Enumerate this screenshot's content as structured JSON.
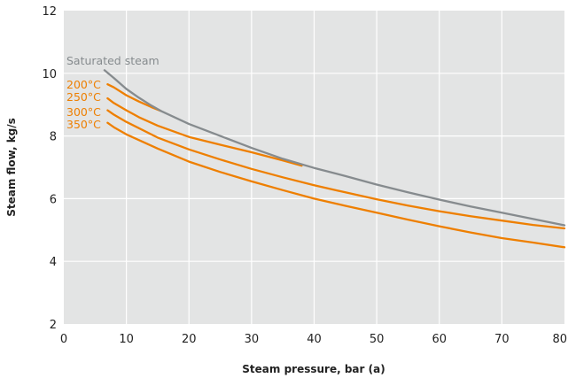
{
  "chart_data": {
    "type": "line",
    "title": "",
    "xlabel": "Steam pressure, bar (a)",
    "ylabel": "Steam flow, kg/s",
    "xlim": [
      0,
      80
    ],
    "ylim": [
      2,
      12
    ],
    "xticks": [
      "0",
      "10",
      "20",
      "30",
      "40",
      "50",
      "60",
      "70",
      "80"
    ],
    "yticks": [
      "2",
      "4",
      "6",
      "8",
      "10",
      "12"
    ],
    "grid": true,
    "background": "#e3e4e4",
    "series": [
      {
        "name": "Saturated steam",
        "color": "#868b8e",
        "points": [
          [
            6.5,
            10.1
          ],
          [
            8,
            9.85
          ],
          [
            10,
            9.5
          ],
          [
            12,
            9.22
          ],
          [
            14,
            8.97
          ],
          [
            15.5,
            8.8
          ],
          [
            20,
            8.38
          ],
          [
            25,
            8.0
          ],
          [
            30,
            7.62
          ],
          [
            35,
            7.27
          ],
          [
            40,
            6.98
          ],
          [
            45,
            6.72
          ],
          [
            50,
            6.45
          ],
          [
            55,
            6.2
          ],
          [
            60,
            5.97
          ],
          [
            65,
            5.75
          ],
          [
            70,
            5.55
          ],
          [
            75,
            5.35
          ],
          [
            80,
            5.15
          ]
        ]
      },
      {
        "name": "200°C",
        "color": "#ee7f00",
        "points": [
          [
            7,
            9.65
          ],
          [
            8,
            9.55
          ],
          [
            10,
            9.3
          ],
          [
            12,
            9.1
          ],
          [
            14,
            8.92
          ],
          [
            15.5,
            8.8
          ]
        ]
      },
      {
        "name": "250°C",
        "color": "#ee7f00",
        "points": [
          [
            7,
            9.2
          ],
          [
            8,
            9.05
          ],
          [
            10,
            8.82
          ],
          [
            12,
            8.6
          ],
          [
            15,
            8.33
          ],
          [
            20,
            7.97
          ],
          [
            25,
            7.72
          ],
          [
            30,
            7.48
          ],
          [
            35,
            7.22
          ],
          [
            38,
            7.05
          ]
        ]
      },
      {
        "name": "300°C",
        "color": "#ee7f00",
        "points": [
          [
            7,
            8.82
          ],
          [
            8,
            8.68
          ],
          [
            10,
            8.45
          ],
          [
            15,
            7.95
          ],
          [
            20,
            7.57
          ],
          [
            25,
            7.25
          ],
          [
            30,
            6.95
          ],
          [
            35,
            6.68
          ],
          [
            40,
            6.43
          ],
          [
            45,
            6.2
          ],
          [
            50,
            5.98
          ],
          [
            55,
            5.78
          ],
          [
            60,
            5.6
          ],
          [
            65,
            5.44
          ],
          [
            70,
            5.3
          ],
          [
            75,
            5.16
          ],
          [
            80,
            5.05
          ]
        ]
      },
      {
        "name": "350°C",
        "color": "#ee7f00",
        "points": [
          [
            7,
            8.42
          ],
          [
            8,
            8.28
          ],
          [
            10,
            8.05
          ],
          [
            15,
            7.6
          ],
          [
            20,
            7.18
          ],
          [
            25,
            6.85
          ],
          [
            30,
            6.55
          ],
          [
            35,
            6.27
          ],
          [
            40,
            6.0
          ],
          [
            45,
            5.77
          ],
          [
            50,
            5.55
          ],
          [
            55,
            5.33
          ],
          [
            60,
            5.12
          ],
          [
            65,
            4.92
          ],
          [
            70,
            4.74
          ],
          [
            75,
            4.6
          ],
          [
            80,
            4.45
          ]
        ]
      }
    ]
  }
}
